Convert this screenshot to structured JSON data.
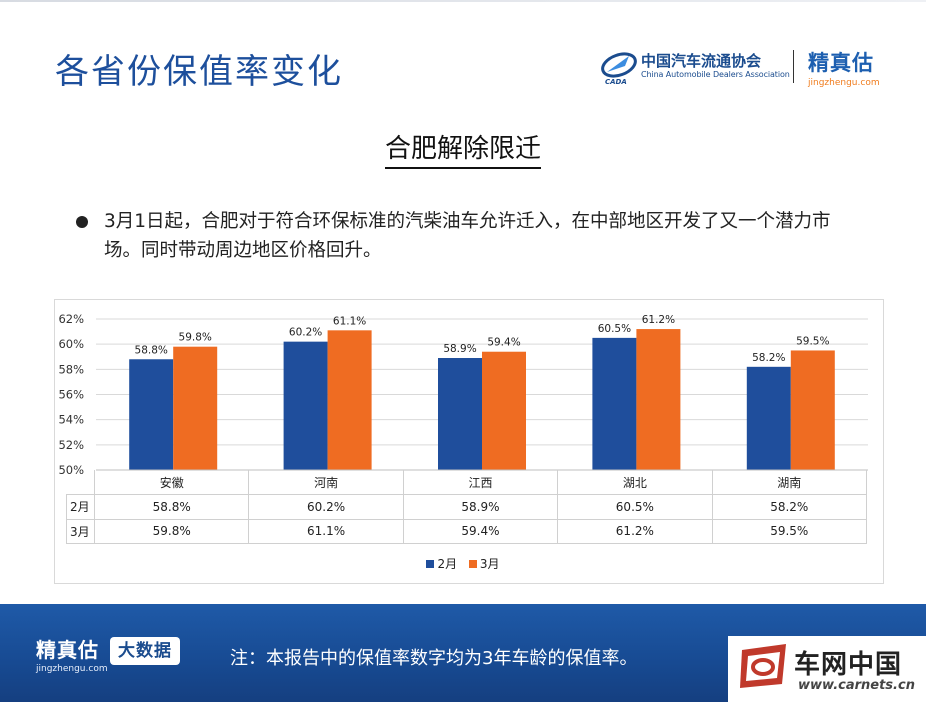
{
  "header": {
    "title": "各省份保值率变化",
    "cada_cn": "中国汽车流通协会",
    "cada_en": "China Automobile Dealers Association",
    "cada_emblem_text": "CADA",
    "jzg_cn": "精真估",
    "jzg_url": "jingzhengu.com"
  },
  "subtitle": "合肥解除限迁",
  "bullet": "3月1日起，合肥对于符合环保标准的汽柴油车允许迁入，在中部地区开发了又一个潜力市场。同时带动周边地区价格回升。",
  "chart_data": {
    "type": "bar",
    "categories": [
      "安徽",
      "河南",
      "江西",
      "湖北",
      "湖南"
    ],
    "series": [
      {
        "name": "2月",
        "values": [
          58.8,
          60.2,
          58.9,
          60.5,
          58.2
        ],
        "labels": [
          "58.8%",
          "60.2%",
          "58.9%",
          "60.5%",
          "58.2%"
        ],
        "color": "#1f4e9c"
      },
      {
        "name": "3月",
        "values": [
          59.8,
          61.1,
          59.4,
          61.2,
          59.5
        ],
        "labels": [
          "59.8%",
          "61.1%",
          "59.4%",
          "61.2%",
          "59.5%"
        ],
        "color": "#ef6c22"
      }
    ],
    "ylim": [
      50,
      62
    ],
    "yticks": [
      "50%",
      "52%",
      "54%",
      "56%",
      "58%",
      "60%",
      "62%"
    ],
    "ytick_values": [
      50,
      52,
      54,
      56,
      58,
      60,
      62
    ],
    "grid": true,
    "legend": "bottom"
  },
  "table": {
    "rows": [
      {
        "label": "2月",
        "values": [
          "58.8%",
          "60.2%",
          "58.9%",
          "60.5%",
          "58.2%"
        ]
      },
      {
        "label": "3月",
        "values": [
          "59.8%",
          "61.1%",
          "59.4%",
          "61.2%",
          "59.5%"
        ]
      }
    ]
  },
  "footer": {
    "jzg_cn": "精真估",
    "jzg_url": "jingzhengu.com",
    "big_data": "大数据",
    "note": "注：本报告中的保值率数字均为3年车龄的保值率。",
    "carnets_cn": "车网中国",
    "carnets_url": "www.carnets.cn"
  }
}
